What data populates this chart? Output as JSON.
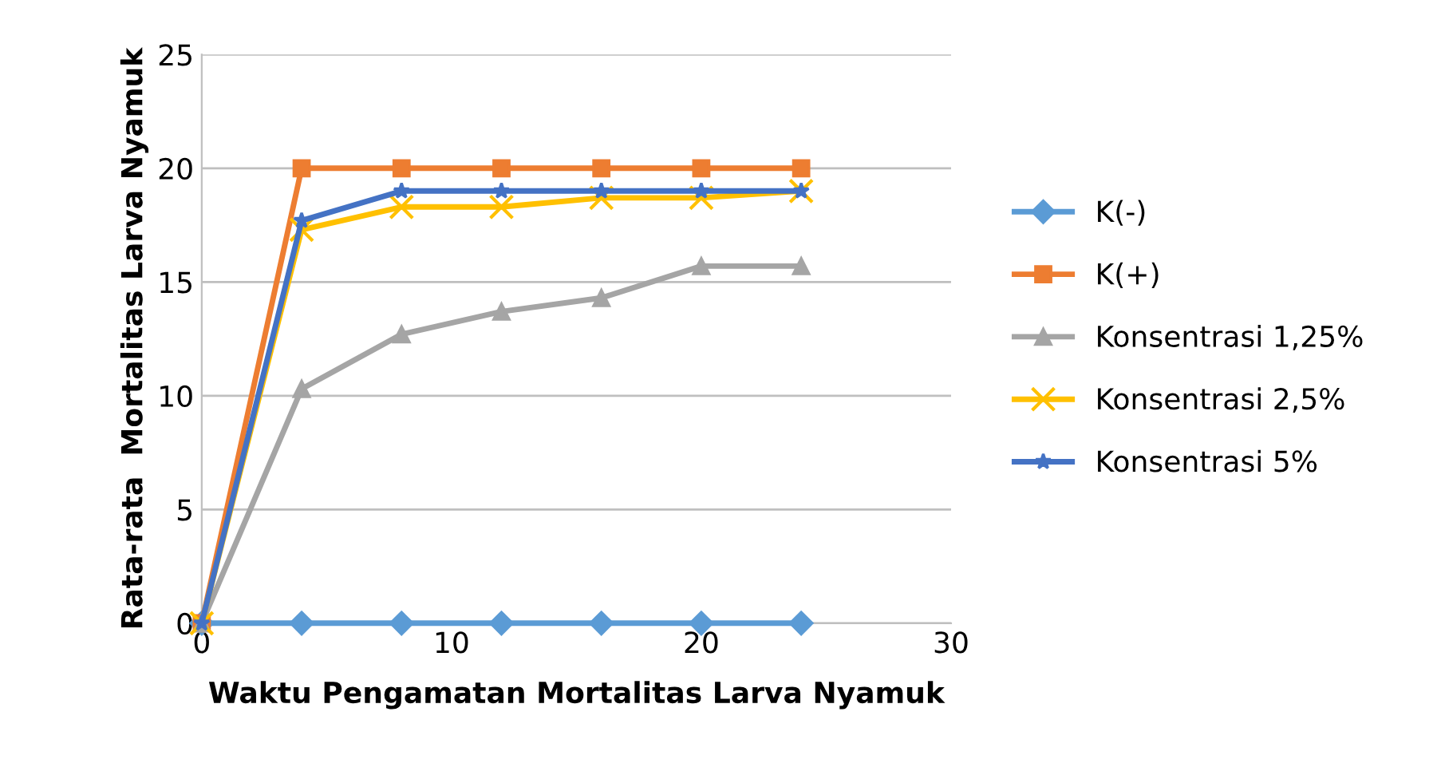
{
  "chart_data": {
    "type": "line",
    "xlabel": "Waktu Pengamatan Mortalitas Larva Nyamuk",
    "ylabel": "Rata-rata  Mortalitas Larva Nyamuk",
    "x": [
      0,
      4,
      8,
      12,
      16,
      20,
      24
    ],
    "series": [
      {
        "name": "K(-)",
        "color": "#5b9bd5",
        "marker": "diamond",
        "values": [
          0,
          0,
          0,
          0,
          0,
          0,
          0
        ]
      },
      {
        "name": "K(+)",
        "color": "#ed7d31",
        "marker": "square",
        "values": [
          0,
          20,
          20,
          20,
          20,
          20,
          20
        ]
      },
      {
        "name": "Konsentrasi 1,25%",
        "color": "#a5a5a5",
        "marker": "triangle",
        "values": [
          0,
          10.3,
          12.7,
          13.7,
          14.3,
          15.7,
          15.7
        ]
      },
      {
        "name": "Konsentrasi 2,5%",
        "color": "#ffc000",
        "marker": "cross",
        "values": [
          0,
          17.3,
          18.3,
          18.3,
          18.7,
          18.7,
          19
        ]
      },
      {
        "name": "Konsentrasi 5%",
        "color": "#4472c4",
        "marker": "star",
        "values": [
          0,
          17.7,
          19,
          19,
          19,
          19,
          19
        ]
      }
    ],
    "xlim": [
      0,
      30
    ],
    "xticks": [
      0,
      10,
      20,
      30
    ],
    "ylim": [
      0,
      25
    ],
    "yticks": [
      0,
      5,
      10,
      15,
      20,
      25
    ],
    "grid": "y",
    "legend": "right"
  }
}
